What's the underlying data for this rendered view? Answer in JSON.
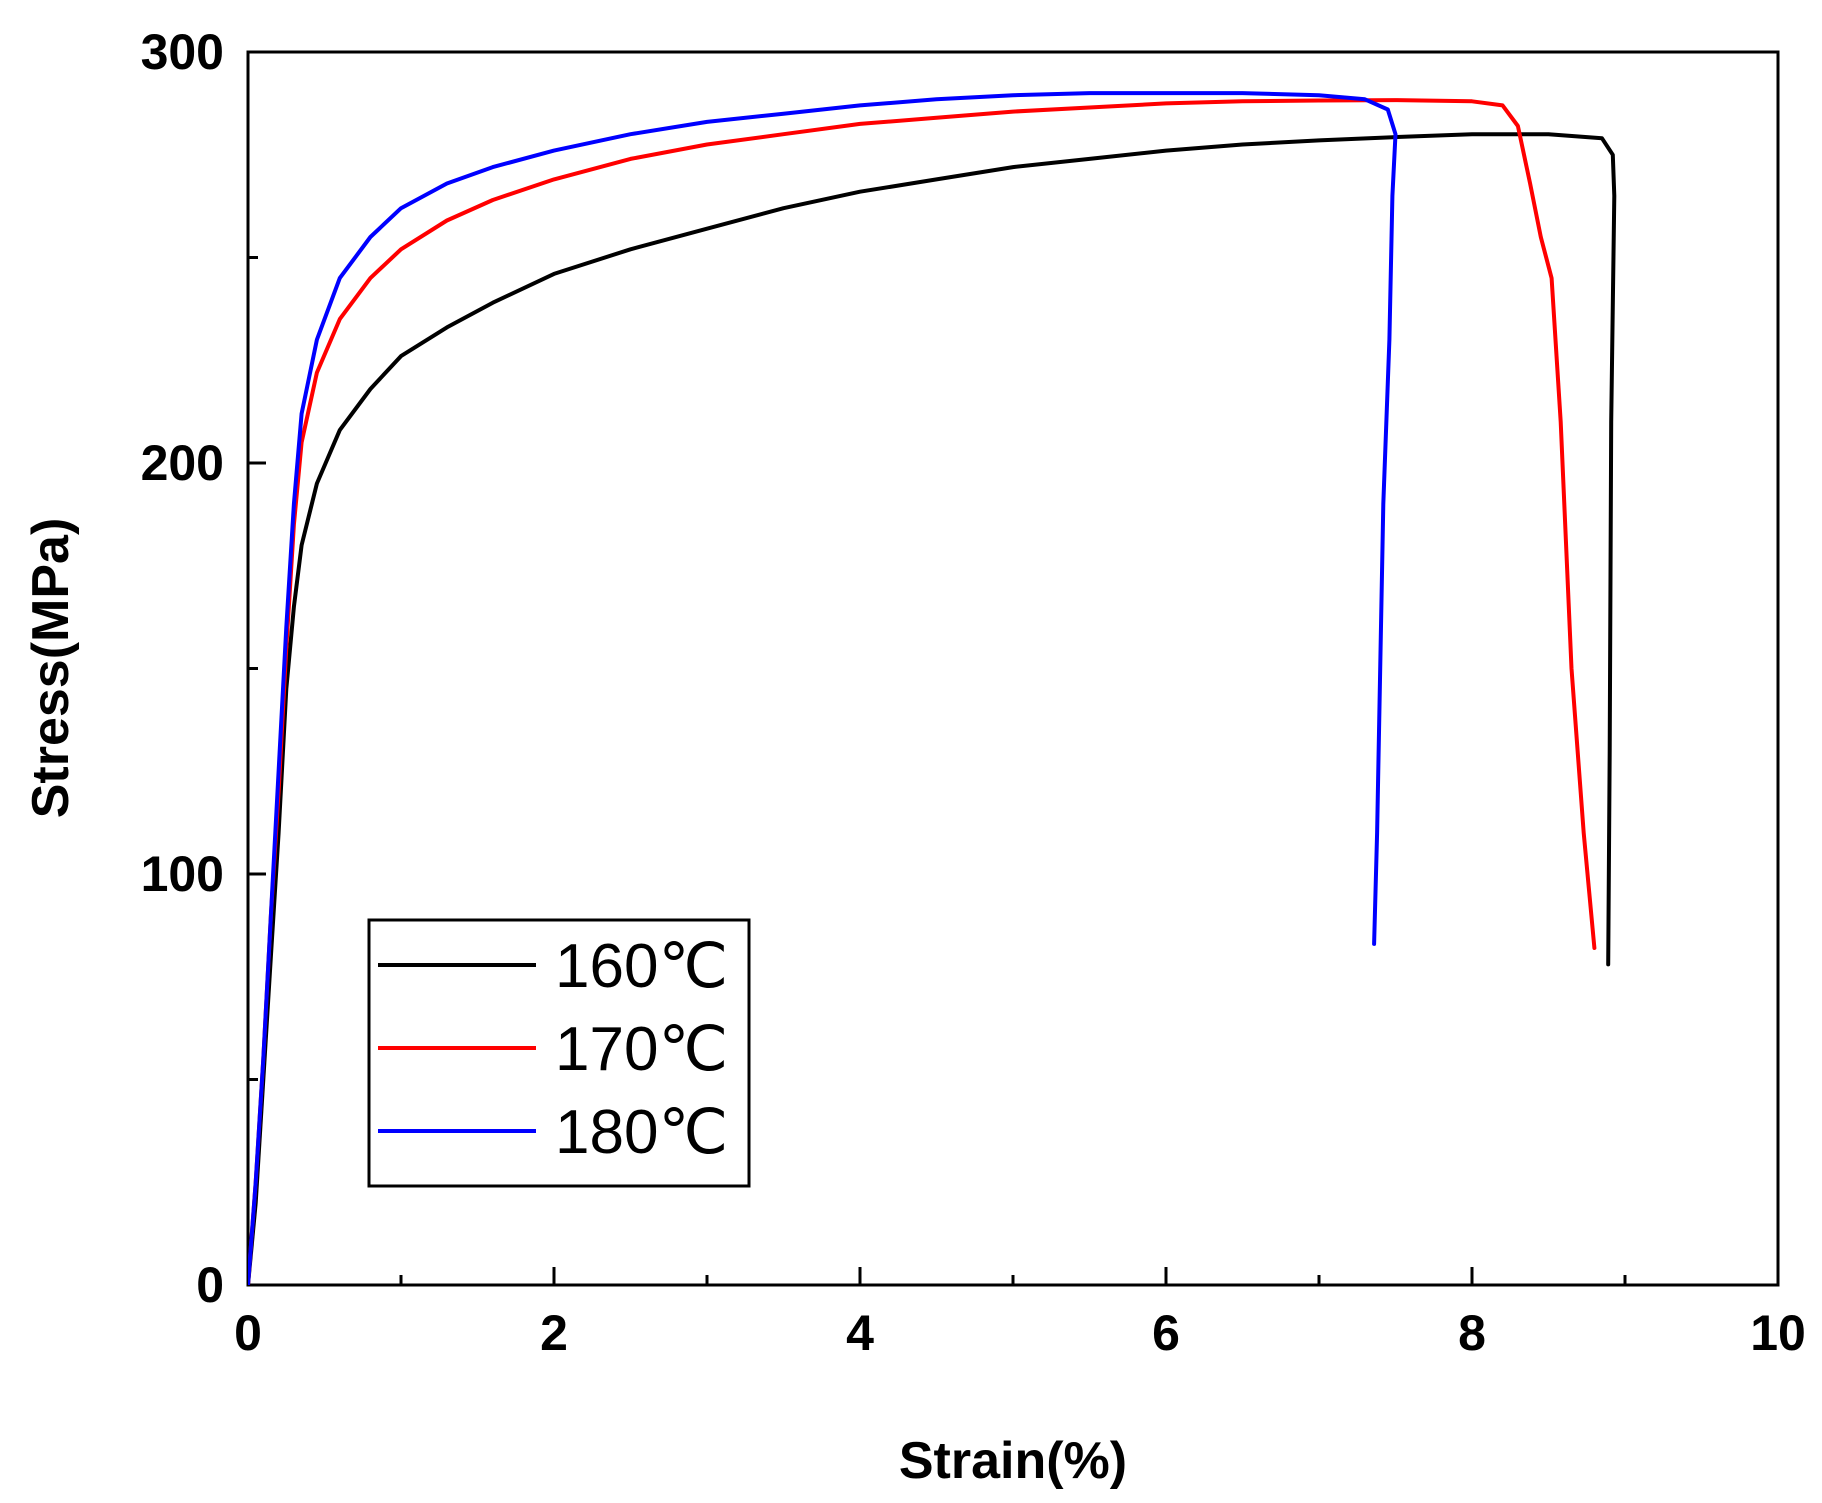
{
  "chart_data": {
    "type": "line",
    "title": "",
    "xlabel": "Strain(%)",
    "ylabel": "Stress(MPa)",
    "xlim": [
      0,
      10
    ],
    "ylim": [
      0,
      300
    ],
    "xticks": [
      0,
      2,
      4,
      6,
      8,
      10
    ],
    "yticks": [
      0,
      100,
      200,
      300
    ],
    "x_minor_ticks": [
      1,
      3,
      5,
      7,
      9
    ],
    "y_minor_ticks": [
      50,
      150,
      250
    ],
    "grid": false,
    "legend_position": "bottom-left",
    "series": [
      {
        "name": "160℃",
        "color": "#000000",
        "points": [
          [
            0,
            0
          ],
          [
            0.05,
            20
          ],
          [
            0.1,
            50
          ],
          [
            0.15,
            80
          ],
          [
            0.2,
            110
          ],
          [
            0.25,
            145
          ],
          [
            0.3,
            165
          ],
          [
            0.35,
            180
          ],
          [
            0.45,
            195
          ],
          [
            0.6,
            208
          ],
          [
            0.8,
            218
          ],
          [
            1.0,
            226
          ],
          [
            1.3,
            233
          ],
          [
            1.6,
            239
          ],
          [
            2.0,
            246
          ],
          [
            2.5,
            252
          ],
          [
            3.0,
            257
          ],
          [
            3.5,
            262
          ],
          [
            4.0,
            266
          ],
          [
            4.5,
            269
          ],
          [
            5.0,
            272
          ],
          [
            5.5,
            274
          ],
          [
            6.0,
            276
          ],
          [
            6.5,
            277.5
          ],
          [
            7.0,
            278.5
          ],
          [
            7.5,
            279.3
          ],
          [
            8.0,
            280
          ],
          [
            8.5,
            280
          ],
          [
            8.85,
            279
          ],
          [
            8.92,
            275
          ],
          [
            8.93,
            265
          ],
          [
            8.91,
            210
          ],
          [
            8.9,
            130
          ],
          [
            8.89,
            78
          ]
        ]
      },
      {
        "name": "170℃",
        "color": "#ff0000",
        "points": [
          [
            0,
            0
          ],
          [
            0.05,
            25
          ],
          [
            0.1,
            55
          ],
          [
            0.15,
            90
          ],
          [
            0.2,
            120
          ],
          [
            0.25,
            155
          ],
          [
            0.3,
            185
          ],
          [
            0.35,
            205
          ],
          [
            0.45,
            222
          ],
          [
            0.6,
            235
          ],
          [
            0.8,
            245
          ],
          [
            1.0,
            252
          ],
          [
            1.3,
            259
          ],
          [
            1.6,
            264
          ],
          [
            2.0,
            269
          ],
          [
            2.5,
            274
          ],
          [
            3.0,
            277.5
          ],
          [
            3.5,
            280
          ],
          [
            4.0,
            282.5
          ],
          [
            4.5,
            284
          ],
          [
            5.0,
            285.5
          ],
          [
            5.5,
            286.5
          ],
          [
            6.0,
            287.5
          ],
          [
            6.5,
            288
          ],
          [
            7.0,
            288.2
          ],
          [
            7.5,
            288.3
          ],
          [
            8.0,
            288
          ],
          [
            8.2,
            287
          ],
          [
            8.3,
            282
          ],
          [
            8.38,
            268
          ],
          [
            8.45,
            255
          ],
          [
            8.52,
            245
          ],
          [
            8.58,
            210
          ],
          [
            8.65,
            150
          ],
          [
            8.73,
            110
          ],
          [
            8.8,
            82
          ]
        ]
      },
      {
        "name": "180℃",
        "color": "#0000ff",
        "points": [
          [
            0,
            0
          ],
          [
            0.05,
            25
          ],
          [
            0.1,
            55
          ],
          [
            0.15,
            90
          ],
          [
            0.2,
            125
          ],
          [
            0.25,
            160
          ],
          [
            0.3,
            190
          ],
          [
            0.35,
            212
          ],
          [
            0.45,
            230
          ],
          [
            0.6,
            245
          ],
          [
            0.8,
            255
          ],
          [
            1.0,
            262
          ],
          [
            1.3,
            268
          ],
          [
            1.6,
            272
          ],
          [
            2.0,
            276
          ],
          [
            2.5,
            280
          ],
          [
            3.0,
            283
          ],
          [
            3.5,
            285
          ],
          [
            4.0,
            287
          ],
          [
            4.5,
            288.5
          ],
          [
            5.0,
            289.5
          ],
          [
            5.5,
            290
          ],
          [
            6.0,
            290
          ],
          [
            6.5,
            290
          ],
          [
            7.0,
            289.5
          ],
          [
            7.3,
            288.5
          ],
          [
            7.45,
            286
          ],
          [
            7.5,
            280
          ],
          [
            7.48,
            265
          ],
          [
            7.46,
            230
          ],
          [
            7.42,
            190
          ],
          [
            7.4,
            150
          ],
          [
            7.38,
            110
          ],
          [
            7.36,
            83
          ]
        ]
      }
    ]
  }
}
